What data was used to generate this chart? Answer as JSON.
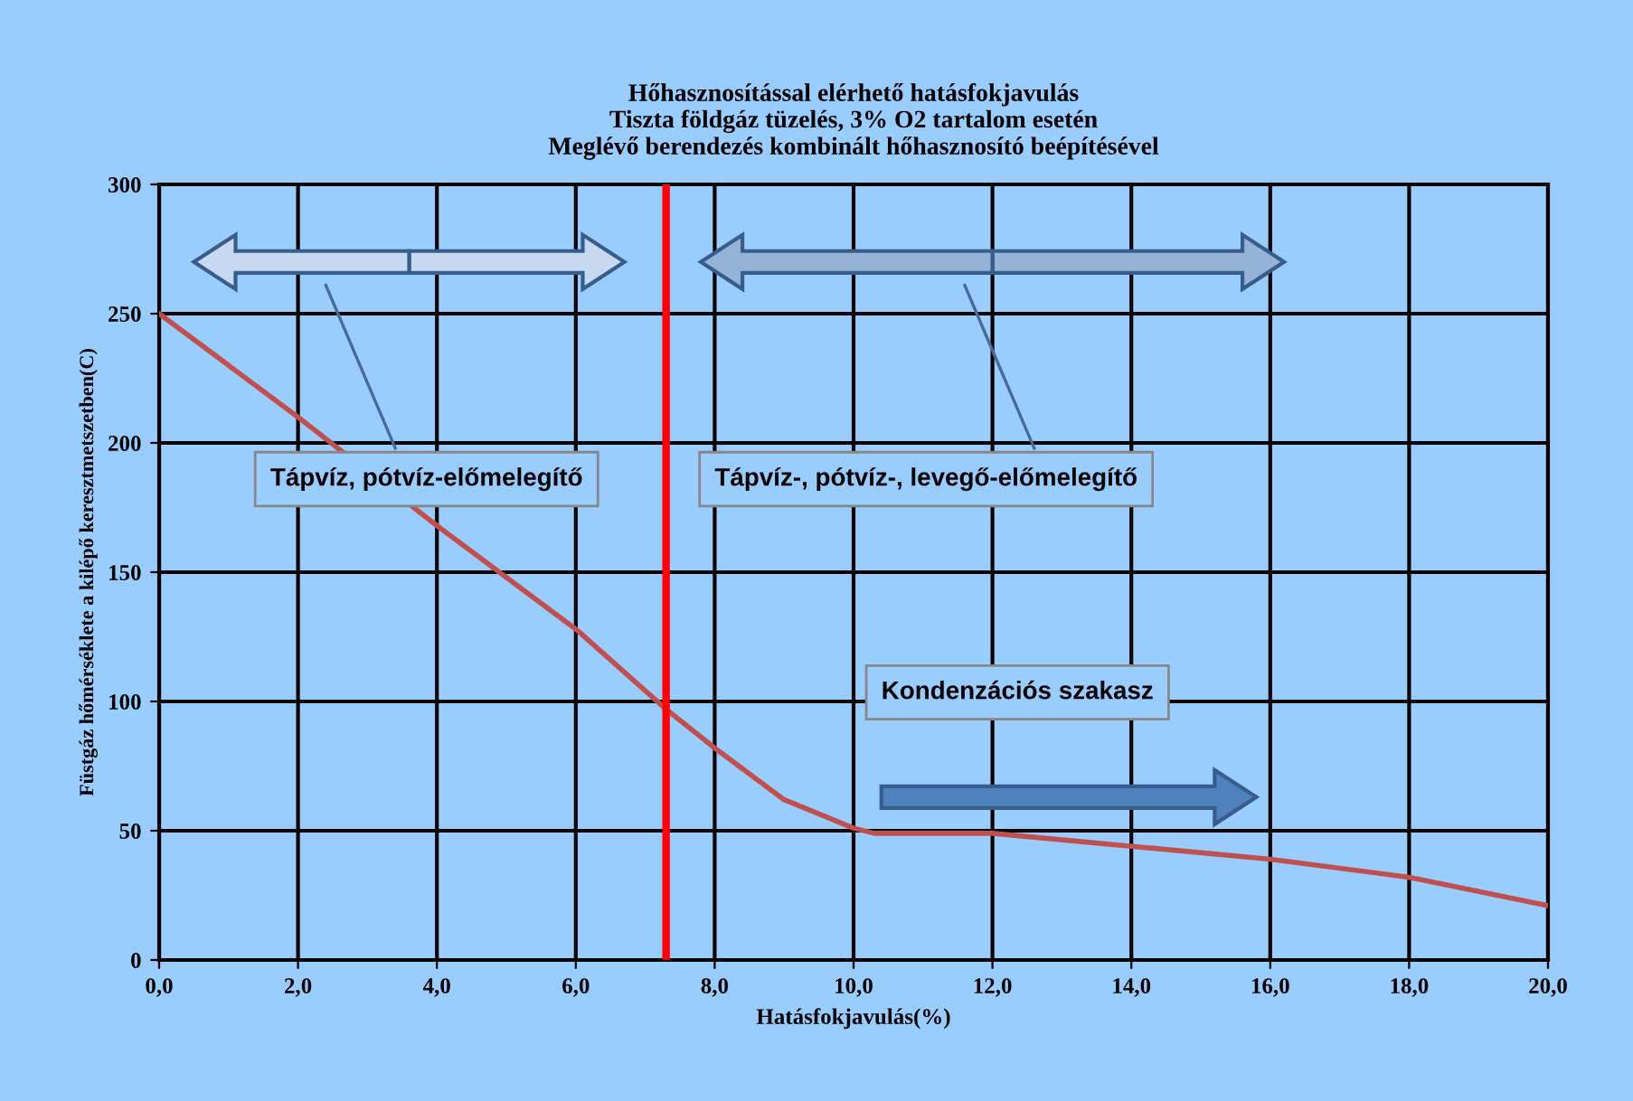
{
  "chart_data": {
    "type": "line",
    "title": "Hőhasznosítással elérhető hatásfokjavulás\nTiszta földgáz tüzelés, 3% O2 tartalom esetén\nMeglévő berendezés kombinált hőhasznosító beépítésével",
    "xlabel": "Hatásfokjavulás(%)",
    "ylabel": "Füstgáz hőmérséklete a kilépő keresztmetszetben(C)",
    "series": [
      {
        "color": "#c0504d",
        "x": [
          0,
          2,
          4,
          6,
          7.3,
          8,
          9,
          10,
          10.3,
          12,
          14,
          16,
          18,
          20
        ],
        "values": [
          250,
          210,
          168,
          128,
          97,
          82,
          62,
          51,
          49,
          49,
          44,
          39,
          32,
          21
        ]
      }
    ],
    "xlim": [
      0,
      20
    ],
    "xticks": [
      {
        "value": 0,
        "label": "0,0"
      },
      {
        "value": 2,
        "label": "2,0"
      },
      {
        "value": 4,
        "label": "4,0"
      },
      {
        "value": 6,
        "label": "6,0"
      },
      {
        "value": 8,
        "label": "8,0"
      },
      {
        "value": 10,
        "label": "10,0"
      },
      {
        "value": 12,
        "label": "12,0"
      },
      {
        "value": 14,
        "label": "14,0"
      },
      {
        "value": 16,
        "label": "16,0"
      },
      {
        "value": 18,
        "label": "18,0"
      },
      {
        "value": 20,
        "label": "20,0"
      }
    ],
    "ylim": [
      0,
      300
    ],
    "yticks": [
      0,
      50,
      100,
      150,
      200,
      250,
      300
    ],
    "ref_lines": [
      {
        "axis": "x",
        "value": 7.3,
        "color": "#ff0000"
      }
    ],
    "annotations": [
      "Tápvíz, pótvíz-előmelegítő",
      "Tápvíz-, pótvíz-, levegő-előmelegítő",
      "Kondenzációs szakasz"
    ],
    "grid": true,
    "marker": "none",
    "line_style": "solid"
  }
}
